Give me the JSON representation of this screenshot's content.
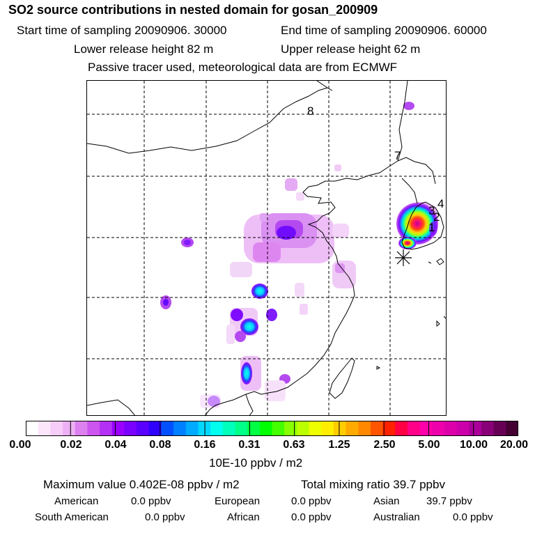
{
  "header": {
    "title": "SO2 source contributions in nested domain for gosan_200909",
    "start_time": "Start time of sampling 20090906. 30000",
    "end_time": "End time of sampling 20090906. 60000",
    "lower_height": "Lower release height   82 m",
    "upper_height": "Upper release height   62 m",
    "tracer_note": "Passive tracer used, meteorological data are from ECMWF"
  },
  "map": {
    "labels": [
      "8",
      "7",
      "4",
      "3",
      "2",
      "1"
    ],
    "marker": "receptor-star"
  },
  "colorbar": {
    "labels": [
      "0.00",
      "0.02",
      "0.04",
      "0.08",
      "0.16",
      "0.31",
      "0.63",
      "1.25",
      "2.50",
      "5.00",
      "10.00",
      "20.00"
    ],
    "colors": [
      "#ffffff",
      "#fce6fc",
      "#f6ccf8",
      "#eeb0f4",
      "#dd80f0",
      "#cc55f0",
      "#b430f4",
      "#9a00ff",
      "#7a00ff",
      "#5a00ff",
      "#3000ff",
      "#0050ff",
      "#0080ff",
      "#00aaff",
      "#00d8ff",
      "#00ffee",
      "#00ffbb",
      "#00ff88",
      "#00ff44",
      "#00ff00",
      "#44ff00",
      "#88ff00",
      "#bbff00",
      "#eeff00",
      "#ffee00",
      "#ffcc00",
      "#ffaa00",
      "#ff8800",
      "#ff5500",
      "#ff2200",
      "#ff0044",
      "#ff0088",
      "#ff00aa",
      "#ee00aa",
      "#dd00aa",
      "#cc00aa",
      "#aa0099",
      "#880077",
      "#660055",
      "#440033"
    ],
    "unit": "10E-10 ppbv / m2"
  },
  "footer": {
    "max_value": "Maximum value  0.402E-08 ppbv / m2",
    "total_mixing": "Total mixing ratio       39.7 ppbv",
    "american_label": "American",
    "american_value": "0.0 ppbv",
    "european_label": "European",
    "european_value": "0.0 ppbv",
    "asian_label": "Asian",
    "asian_value": "39.7 ppbv",
    "south_american_label": "South American",
    "south_american_value": "0.0 ppbv",
    "african_label": "African",
    "african_value": "0.0 ppbv",
    "australian_label": "Australian",
    "australian_value": "0.0 ppbv"
  }
}
